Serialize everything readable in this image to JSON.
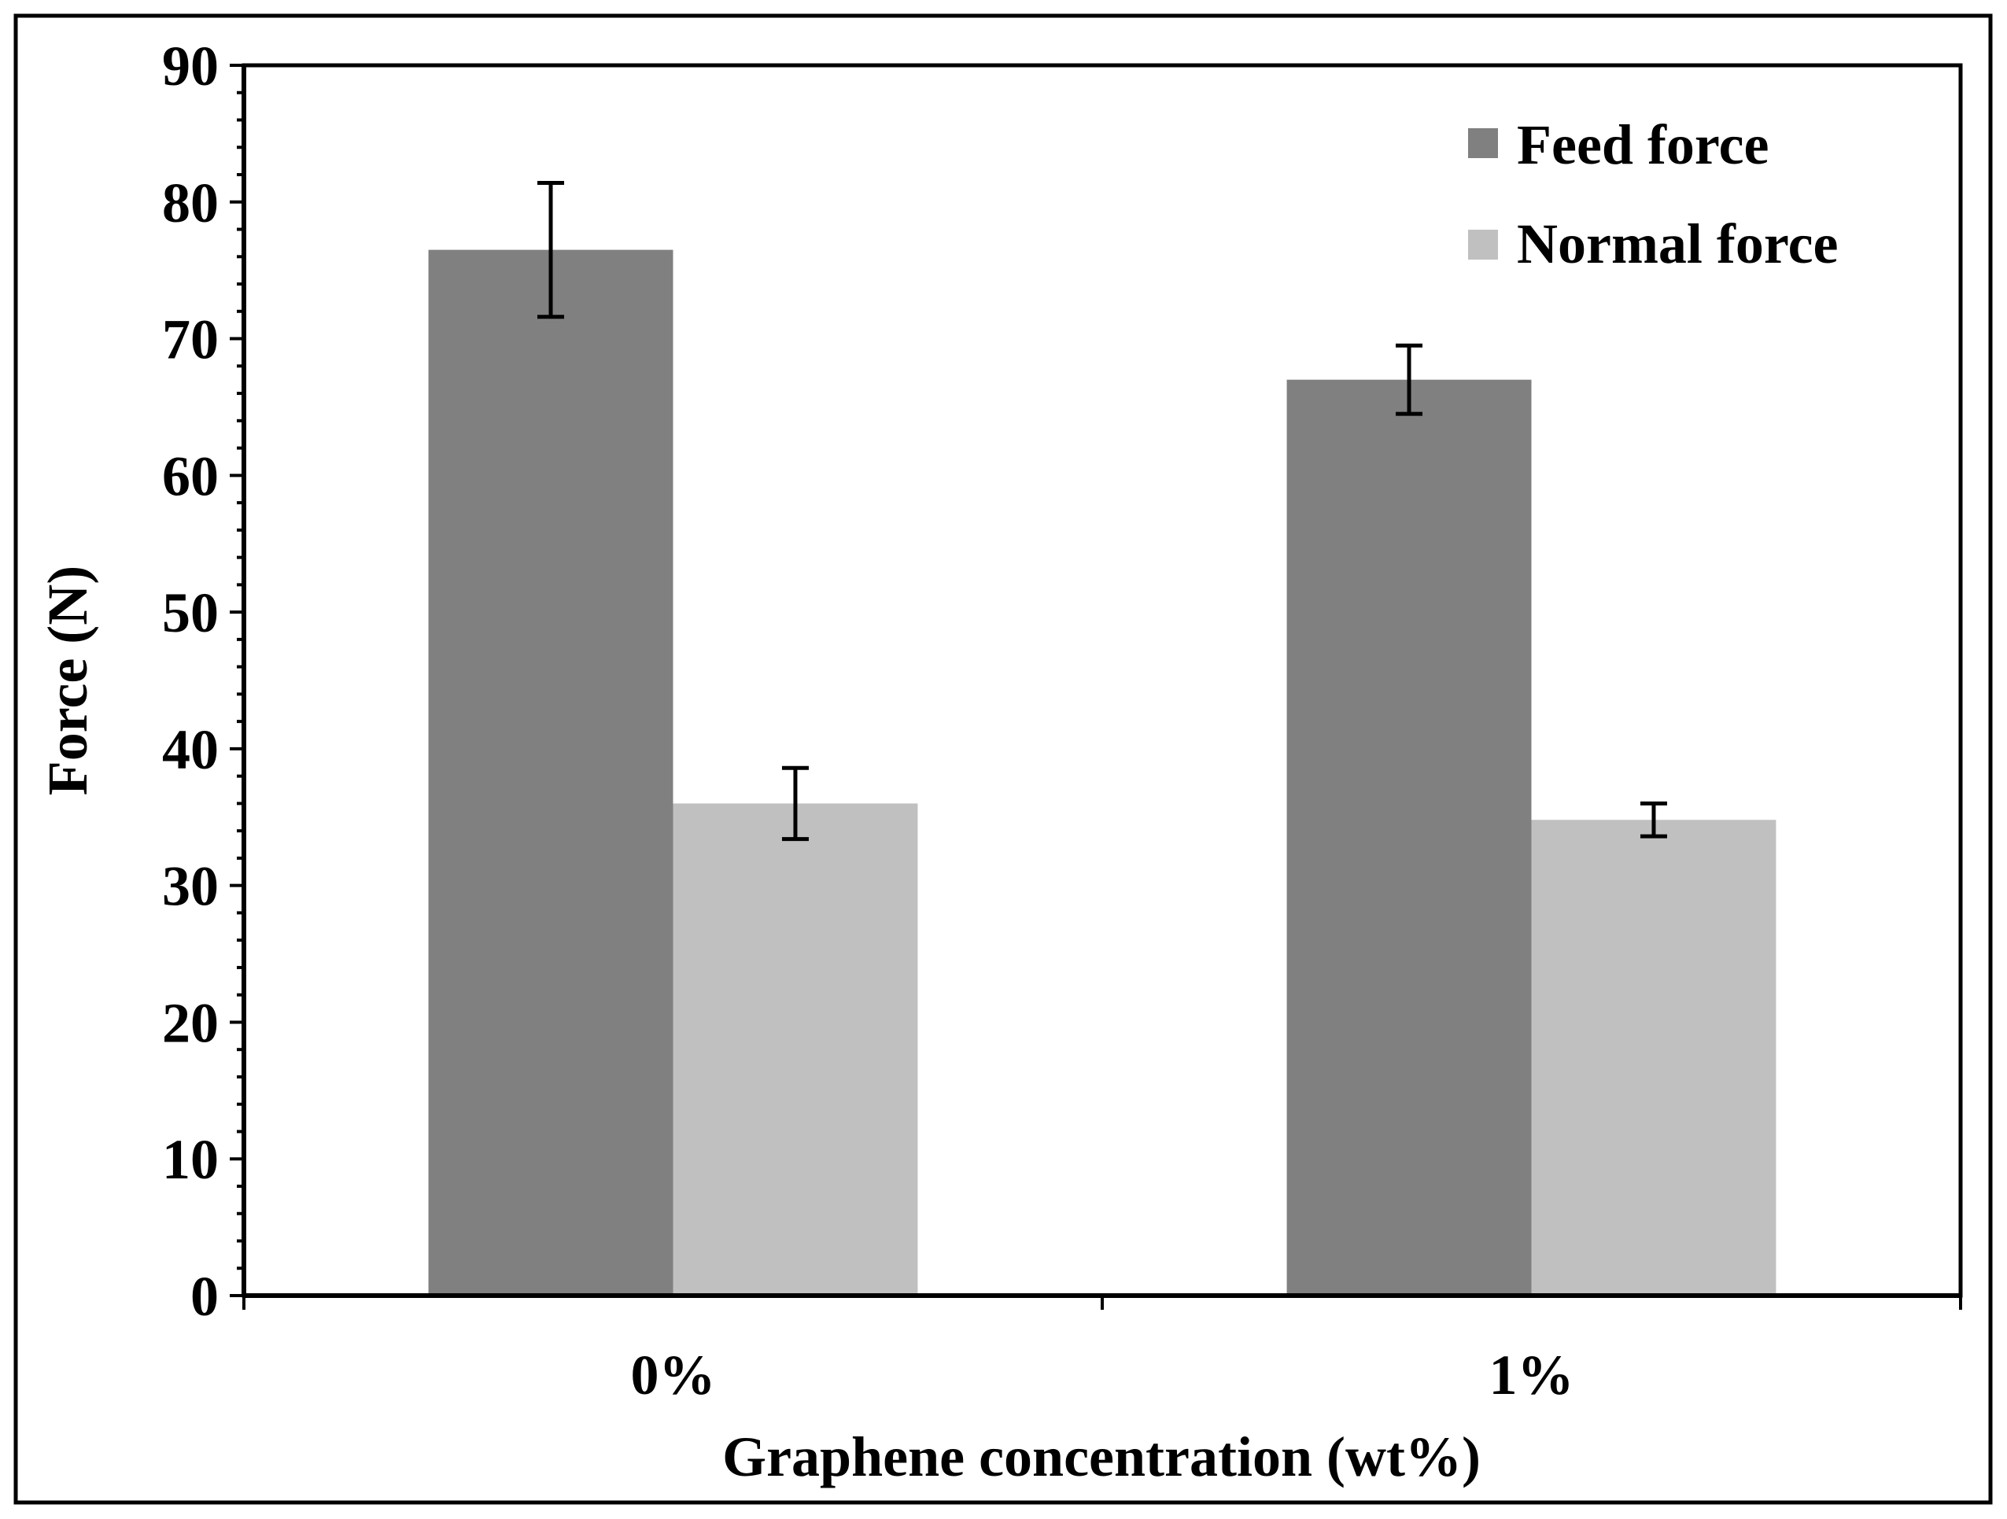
{
  "chart_data": {
    "type": "bar",
    "title": "",
    "xlabel": "Graphene concentration (wt%)",
    "ylabel": "Force (N)",
    "categories": [
      "0%",
      "1%"
    ],
    "series": [
      {
        "name": "Feed force",
        "color": "#808080",
        "values": [
          76.5,
          67.0
        ],
        "errors": [
          4.9,
          2.5
        ]
      },
      {
        "name": "Normal force",
        "color": "#c0c0c0",
        "values": [
          36.0,
          34.8
        ],
        "errors": [
          2.6,
          1.2
        ]
      }
    ],
    "ylim": [
      0,
      90
    ],
    "yticks": [
      0,
      10,
      20,
      30,
      40,
      50,
      60,
      70,
      80,
      90
    ],
    "yticks_labels": [
      "0",
      "10",
      "20",
      "30",
      "40",
      "50",
      "60",
      "70",
      "80",
      "90"
    ],
    "minor_tick_step": 2,
    "grid": false,
    "legend_position": "top-right"
  }
}
